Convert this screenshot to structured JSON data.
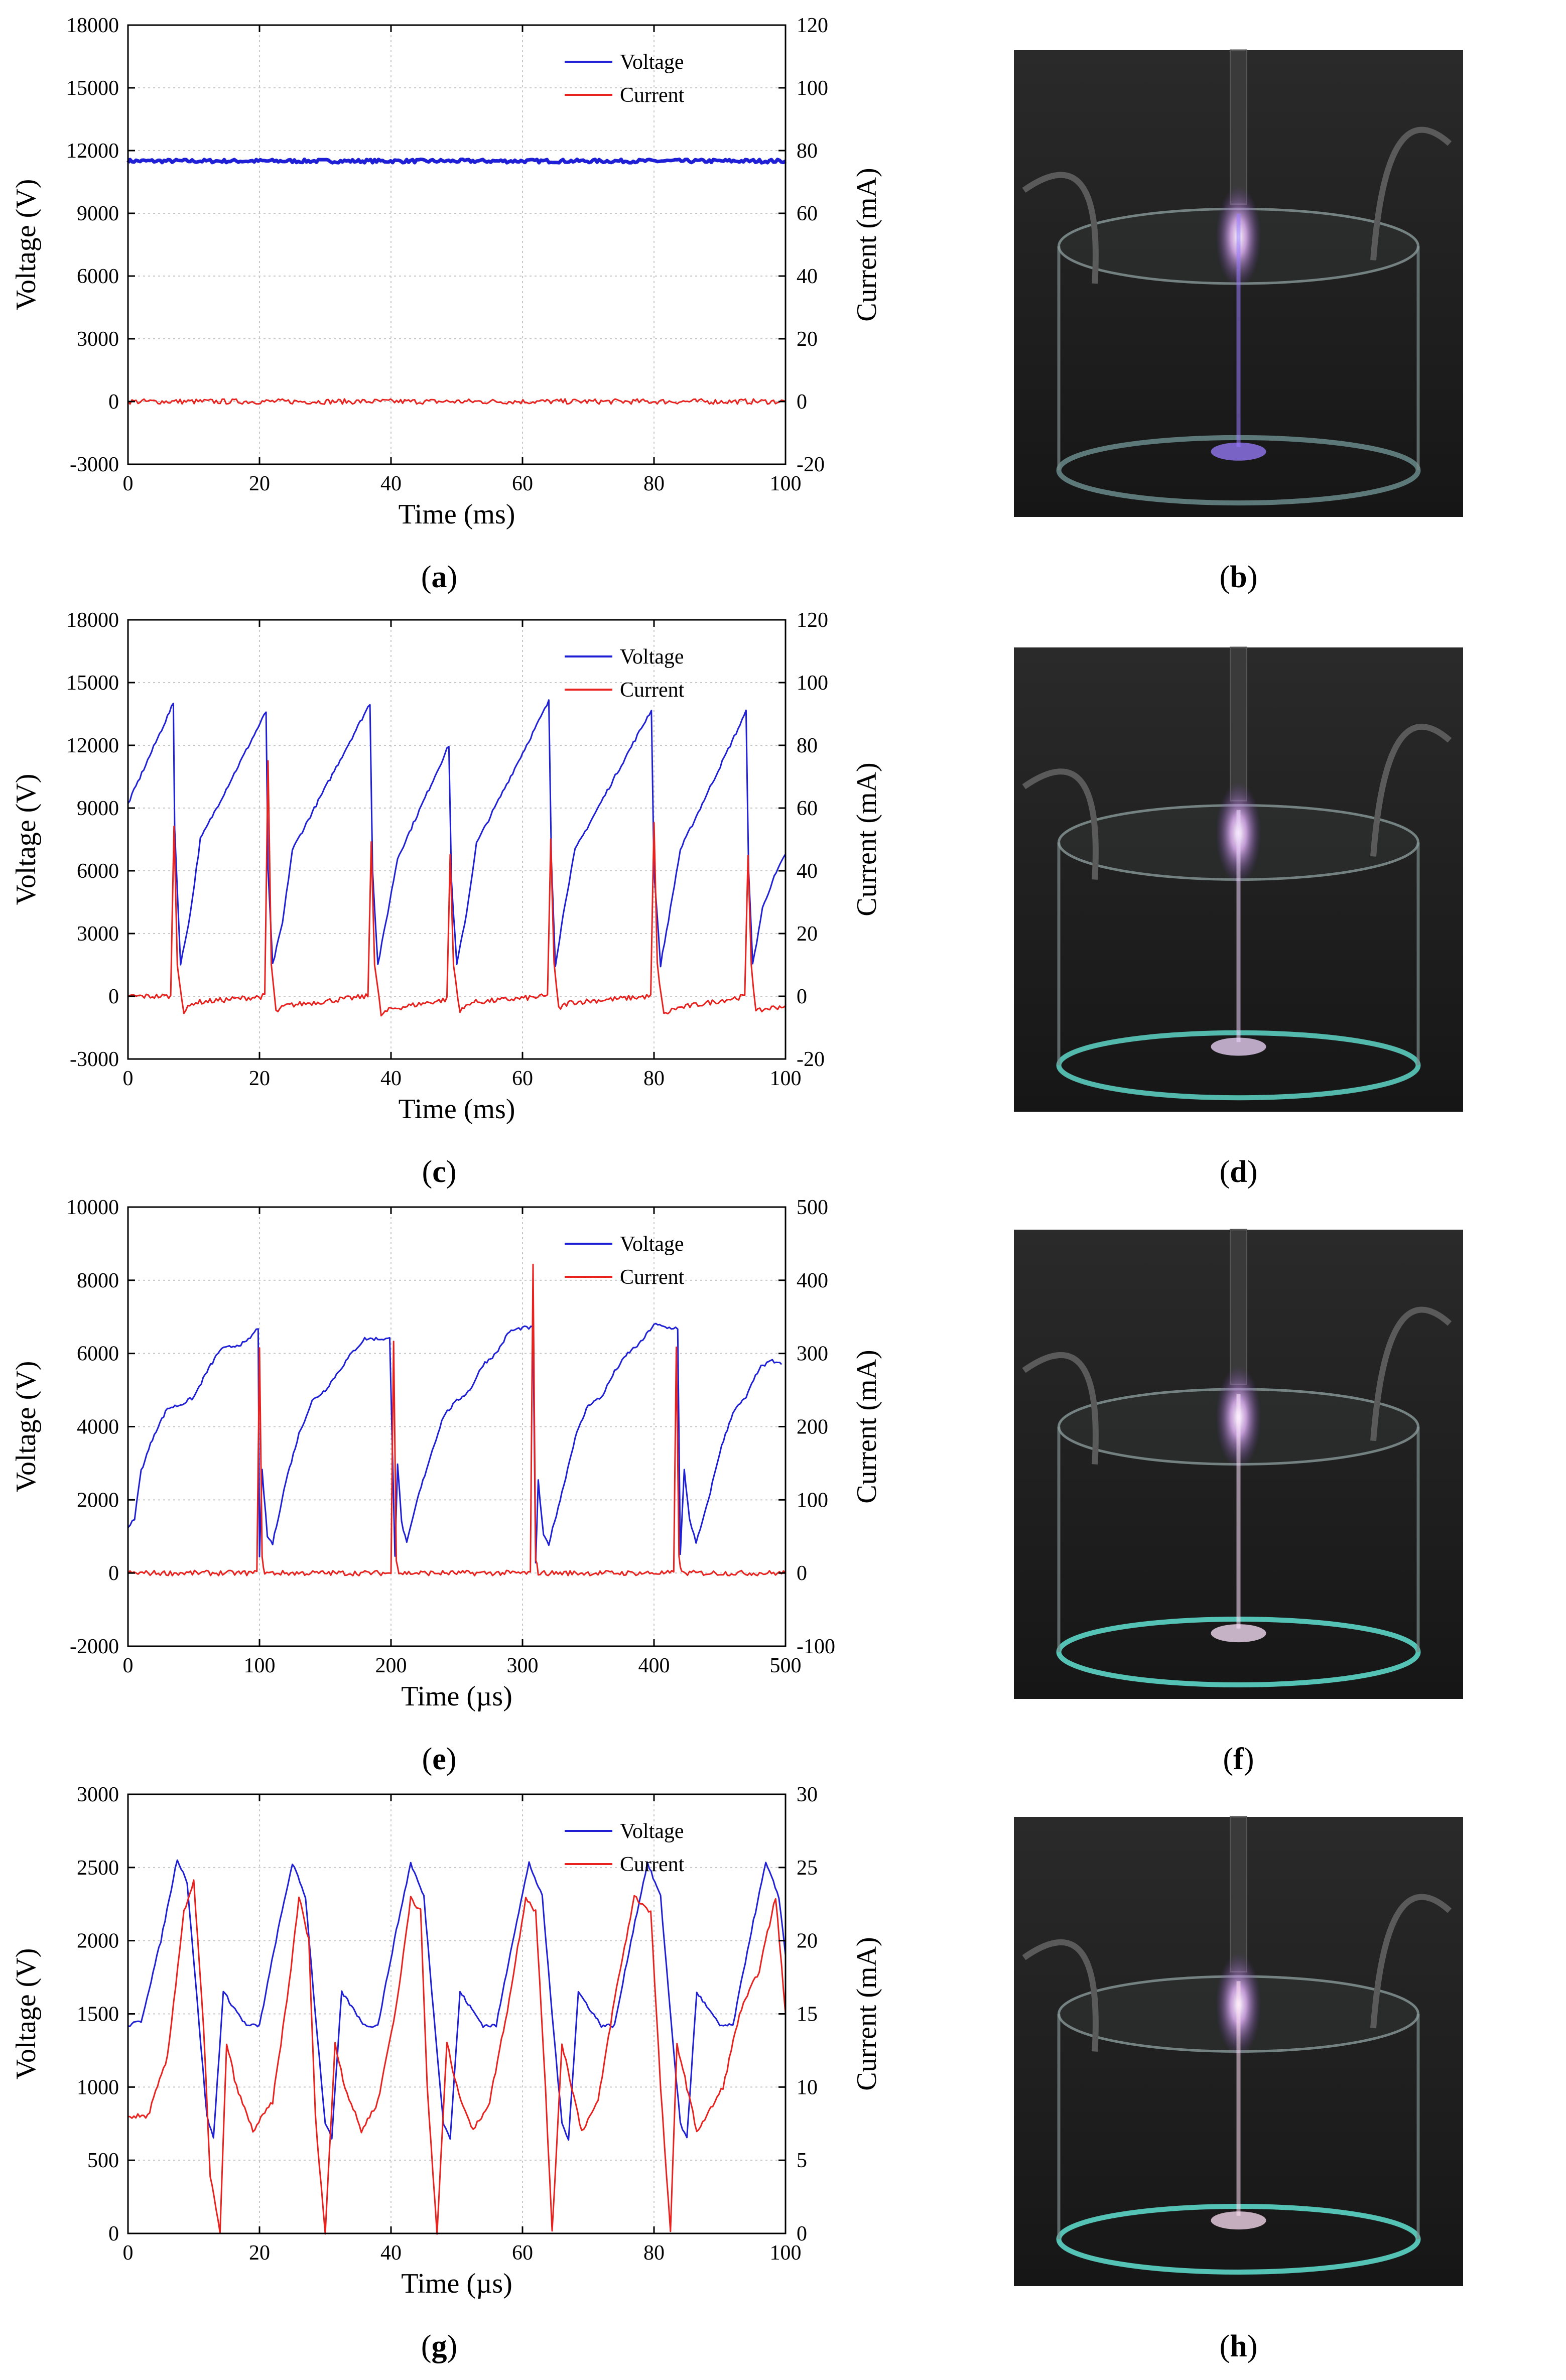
{
  "labels": {
    "xlabel_ms": "Time (ms)",
    "xlabel_us": "Time (µs)",
    "ylabel_left": "Voltage (V)",
    "ylabel_right": "Current (mA)",
    "legend_voltage": "Voltage",
    "legend_current": "Current"
  },
  "colors": {
    "voltage": "#1f1fd6",
    "current": "#e8231f",
    "grid": "#c8c8c8",
    "axis": "#000000"
  },
  "chart_data": [
    {
      "id": "a",
      "type": "line",
      "caption": "a",
      "xlabel": "Time (ms)",
      "ylabel": "Voltage (V)",
      "y2label": "Current (mA)",
      "xlim": [
        0,
        100
      ],
      "xticks": [
        0,
        20,
        40,
        60,
        80,
        100
      ],
      "ylim": [
        -3000,
        18000
      ],
      "yticks": [
        -3000,
        0,
        3000,
        6000,
        9000,
        12000,
        15000,
        18000
      ],
      "y2lim": [
        -20,
        120
      ],
      "y2ticks": [
        -20,
        0,
        20,
        40,
        60,
        80,
        100,
        120
      ],
      "legend": "top-right",
      "series": [
        {
          "name": "Voltage",
          "axis": "left",
          "x": [
            0,
            100
          ],
          "values": [
            11500,
            11500
          ]
        },
        {
          "name": "Current",
          "axis": "right",
          "x": [
            0,
            100
          ],
          "values": [
            0,
            0
          ]
        }
      ]
    },
    {
      "id": "c",
      "type": "line",
      "caption": "c",
      "xlabel": "Time (ms)",
      "ylabel": "Voltage (V)",
      "y2label": "Current (mA)",
      "xlim": [
        0,
        100
      ],
      "xticks": [
        0,
        20,
        40,
        60,
        80,
        100
      ],
      "ylim": [
        -3000,
        18000
      ],
      "yticks": [
        -3000,
        0,
        3000,
        6000,
        9000,
        12000,
        15000,
        18000
      ],
      "y2lim": [
        -20,
        120
      ],
      "y2ticks": [
        -20,
        0,
        20,
        40,
        60,
        80,
        100,
        120
      ],
      "legend": "top-right",
      "series": [
        {
          "name": "Voltage",
          "axis": "left",
          "x": [
            0,
            6.9,
            7.1,
            8,
            9.5,
            11,
            21,
            21.3,
            22,
            23.5,
            25,
            36.8,
            37.2,
            38,
            39.5,
            41,
            48.8,
            49.2,
            50,
            51.5,
            53,
            64,
            64.4,
            65,
            66.5,
            68,
            79.6,
            80,
            81,
            82.5,
            84,
            94,
            94.4,
            95,
            96.5,
            98,
            100
          ],
          "values": [
            9200,
            14000,
            8000,
            1500,
            4000,
            7500,
            13600,
            6000,
            1500,
            3500,
            7000,
            14000,
            6000,
            1500,
            4000,
            6600,
            12000,
            5500,
            1500,
            4000,
            7300,
            14100,
            6500,
            1500,
            4500,
            7000,
            13700,
            6000,
            1500,
            4200,
            7000,
            13600,
            6000,
            1500,
            4200,
            5500,
            6800
          ]
        },
        {
          "name": "Current",
          "axis": "right",
          "x": [
            0,
            6.5,
            7,
            7.5,
            8.5,
            10,
            20.8,
            21.3,
            21.8,
            22.5,
            24,
            36.5,
            37,
            37.5,
            38.5,
            40,
            48.5,
            49,
            49.5,
            50.5,
            52,
            63.8,
            64.3,
            64.8,
            65.5,
            67,
            79.5,
            80,
            80.5,
            81.5,
            83,
            93.8,
            94.3,
            94.8,
            95.5,
            97,
            100
          ],
          "values": [
            0,
            0,
            55,
            10,
            -5,
            -2,
            0,
            75,
            10,
            -5,
            -3,
            0,
            50,
            10,
            -6,
            -4,
            -1,
            45,
            10,
            -5,
            -2,
            0,
            50,
            10,
            -4,
            -2,
            0,
            55,
            10,
            -6,
            -4,
            0,
            45,
            10,
            -5,
            -4,
            -3
          ]
        }
      ]
    },
    {
      "id": "e",
      "type": "line",
      "caption": "e",
      "xlabel": "Time (µs)",
      "ylabel": "Voltage (V)",
      "y2label": "Current (mA)",
      "xlim": [
        0,
        500
      ],
      "xticks": [
        0,
        100,
        200,
        300,
        400,
        500
      ],
      "ylim": [
        -2000,
        10000
      ],
      "yticks": [
        -2000,
        0,
        2000,
        4000,
        6000,
        8000,
        10000
      ],
      "y2lim": [
        -100,
        500
      ],
      "y2ticks": [
        -100,
        0,
        100,
        200,
        300,
        400,
        500
      ],
      "legend": "top-right",
      "series": [
        {
          "name": "Voltage",
          "axis": "left",
          "x": [
            0,
            5,
            10,
            20,
            30,
            40,
            50,
            60,
            70,
            80,
            90,
            99,
            100,
            102,
            106,
            110,
            120,
            130,
            140,
            150,
            160,
            170,
            180,
            190,
            199,
            203,
            205,
            208,
            212,
            220,
            230,
            240,
            250,
            260,
            270,
            280,
            290,
            300,
            308,
            310,
            312,
            316,
            320,
            330,
            340,
            350,
            360,
            370,
            380,
            390,
            400,
            410,
            418,
            420,
            423,
            427,
            432,
            440,
            450,
            460,
            470,
            480,
            490,
            497
          ],
          "values": [
            1200,
            1500,
            2800,
            3800,
            4500,
            4600,
            4800,
            5500,
            6100,
            6200,
            6300,
            6700,
            400,
            2800,
            1000,
            800,
            2500,
            3800,
            4700,
            5000,
            5500,
            6000,
            6400,
            6400,
            6400,
            500,
            3000,
            1400,
            800,
            2000,
            3200,
            4300,
            4700,
            5000,
            5700,
            6000,
            6600,
            6700,
            6700,
            300,
            2500,
            1000,
            800,
            2200,
            3700,
            4600,
            4800,
            5500,
            6000,
            6300,
            6800,
            6700,
            6700,
            500,
            2800,
            1500,
            800,
            1800,
            3300,
            4400,
            4800,
            5600,
            5800,
            5700
          ]
        },
        {
          "name": "Current",
          "axis": "right",
          "x": [
            0,
            98,
            100,
            102,
            104,
            110,
            200,
            202,
            204,
            206,
            212,
            306,
            308,
            310,
            312,
            318,
            415,
            417,
            419,
            421,
            427,
            500
          ],
          "values": [
            0,
            0,
            310,
            20,
            0,
            0,
            0,
            320,
            20,
            0,
            0,
            0,
            420,
            20,
            0,
            0,
            0,
            310,
            20,
            0,
            0,
            0
          ]
        }
      ]
    },
    {
      "id": "g",
      "type": "line",
      "caption": "g",
      "xlabel": "Time (µs)",
      "ylabel": "Voltage (V)",
      "y2label": "Current (mA)",
      "xlim": [
        0,
        100
      ],
      "xticks": [
        0,
        20,
        40,
        60,
        80,
        100
      ],
      "ylim": [
        0,
        3000
      ],
      "yticks": [
        0,
        500,
        1000,
        1500,
        2000,
        2500,
        3000
      ],
      "y2lim": [
        0,
        30
      ],
      "y2ticks": [
        0,
        5,
        10,
        15,
        20,
        25,
        30
      ],
      "legend": "top-right",
      "series": [
        {
          "name": "Voltage",
          "axis": "left",
          "x": [
            0,
            2,
            5,
            7.5,
            9,
            10.5,
            12,
            13,
            14.5,
            16,
            18,
            20,
            22.5,
            25,
            27,
            28.5,
            30,
            31,
            32.5,
            34,
            36,
            38,
            40.5,
            43,
            45,
            46.5,
            48,
            49,
            50.5,
            52,
            54,
            56,
            58.5,
            61,
            63,
            64.5,
            66,
            67,
            68.5,
            70,
            72,
            74,
            76.5,
            79,
            81,
            82.5,
            84,
            85,
            86.5,
            88,
            90,
            92,
            94.5,
            97,
            99,
            100
          ],
          "values": [
            1420,
            1450,
            2000,
            2560,
            2400,
            1600,
            800,
            650,
            1650,
            1550,
            1420,
            1420,
            2000,
            2530,
            2300,
            1500,
            750,
            650,
            1650,
            1550,
            1420,
            1420,
            2000,
            2530,
            2300,
            1500,
            750,
            650,
            1650,
            1550,
            1420,
            1420,
            2000,
            2530,
            2300,
            1500,
            750,
            650,
            1650,
            1550,
            1420,
            1420,
            2000,
            2530,
            2300,
            1500,
            750,
            650,
            1650,
            1550,
            1420,
            1420,
            2000,
            2530,
            2300,
            1900
          ]
        },
        {
          "name": "Current",
          "axis": "right",
          "x": [
            0,
            3,
            6,
            8.5,
            10,
            11.5,
            12.5,
            14,
            15,
            16.5,
            19,
            22,
            24.5,
            26,
            27.5,
            28.5,
            30,
            31.5,
            33,
            35.5,
            38,
            41,
            43,
            44.5,
            45.5,
            47,
            48.5,
            50,
            52.5,
            55,
            58,
            60.5,
            62,
            63.5,
            64.5,
            66,
            67.5,
            69,
            71.5,
            74,
            77,
            79.5,
            81,
            82.5,
            83.5,
            85,
            86.5,
            88,
            90.5,
            93,
            96,
            98.5,
            100
          ],
          "values": [
            8,
            8,
            12,
            22,
            24,
            14,
            4,
            0,
            13,
            10,
            7,
            9,
            17,
            23,
            20,
            8,
            0,
            13,
            10,
            7,
            9,
            16,
            23,
            22,
            10,
            0,
            13,
            10,
            7,
            9,
            16,
            23,
            22,
            10,
            0,
            13,
            10,
            7,
            9,
            16,
            23,
            22,
            10,
            0,
            13,
            10,
            7,
            8,
            10,
            15,
            18,
            23,
            15
          ]
        }
      ]
    }
  ],
  "photos": [
    {
      "id": "b",
      "caption": "b",
      "glow": "#9a7cff",
      "ring": "#6a8a8a"
    },
    {
      "id": "d",
      "caption": "d",
      "glow": "#f0d8ff",
      "ring": "#5fd6c8"
    },
    {
      "id": "f",
      "caption": "f",
      "glow": "#ffe6ff",
      "ring": "#5fe0d0"
    },
    {
      "id": "h",
      "caption": "h",
      "glow": "#ffe0f4",
      "ring": "#5fe0d0"
    }
  ]
}
